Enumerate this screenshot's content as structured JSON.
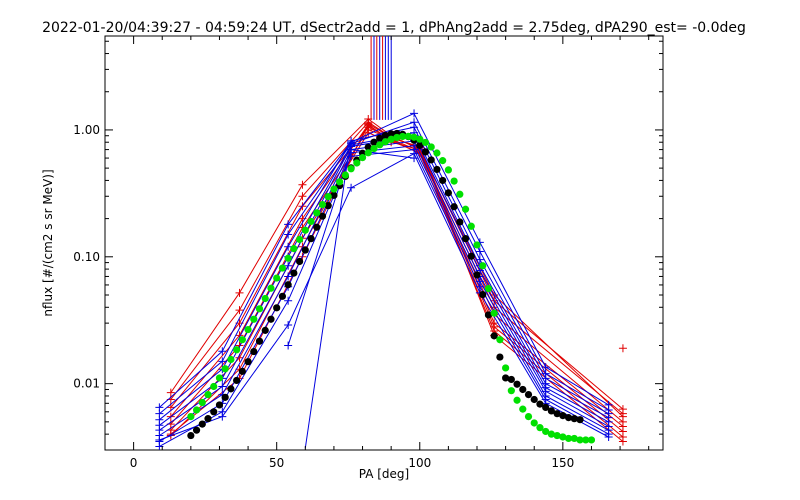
{
  "chart_data": {
    "type": "line",
    "title": "2022-01-20/04:39:27 - 04:59:24 UT, dSectr2add = 1, dPhAng2add = 2.75deg, dPA290_est=  -0.0deg",
    "xlabel": "PA [deg]",
    "ylabel": "nflux [#/(cm2 s sr MeV)]",
    "xlim": [
      -10,
      185
    ],
    "ylim": [
      0.003,
      5.5
    ],
    "yscale": "log",
    "grid": false,
    "xticks": [
      0,
      50,
      100,
      150
    ],
    "xtick_labels": [
      "0",
      "50",
      "100",
      "150"
    ],
    "yticks": [
      0.01,
      0.1,
      1.0
    ],
    "ytick_labels": [
      "0.01",
      "0.10",
      "1.00"
    ],
    "colors": {
      "red": "#e00000",
      "blue": "#0000e0",
      "green": "#00e000",
      "black": "#000000",
      "axis": "#000000"
    },
    "series": [
      {
        "color": "#e00000",
        "marker": "plus",
        "x": [
          13,
          37,
          59,
          82,
          90,
          100,
          126,
          171
        ],
        "y": [
          0.0085,
          0.052,
          0.37,
          1.22,
          0.9,
          0.7,
          0.05,
          0.0055
        ]
      },
      {
        "color": "#e00000",
        "marker": "plus",
        "x": [
          13,
          37,
          59,
          82,
          90,
          100,
          126,
          171
        ],
        "y": [
          0.0075,
          0.038,
          0.3,
          1.15,
          0.88,
          0.72,
          0.045,
          0.0063
        ]
      },
      {
        "color": "#e00000",
        "marker": "plus",
        "x": [
          13,
          37,
          59,
          82,
          90,
          100,
          126,
          171
        ],
        "y": [
          0.0065,
          0.03,
          0.25,
          1.05,
          0.85,
          0.68,
          0.04,
          0.0058
        ]
      },
      {
        "color": "#e00000",
        "marker": "plus",
        "x": [
          13,
          37,
          59,
          82,
          90,
          100,
          126,
          171
        ],
        "y": [
          0.0055,
          0.024,
          0.2,
          1.1,
          0.82,
          0.66,
          0.035,
          0.005
        ]
      },
      {
        "color": "#e00000",
        "marker": "plus",
        "x": [
          13,
          37,
          59,
          82,
          90,
          100,
          126,
          171
        ],
        "y": [
          0.0048,
          0.02,
          0.17,
          1.0,
          0.86,
          0.74,
          0.03,
          0.0046
        ]
      },
      {
        "color": "#e00000",
        "marker": "plus",
        "x": [
          13,
          37,
          59,
          82,
          90,
          100,
          126,
          171
        ],
        "y": [
          0.0043,
          0.016,
          0.14,
          0.95,
          0.8,
          0.7,
          0.028,
          0.0042
        ]
      },
      {
        "color": "#e00000",
        "marker": "plus",
        "x": [
          13,
          37,
          59,
          82,
          90,
          100,
          126,
          171
        ],
        "y": [
          0.0039,
          0.013,
          0.12,
          1.08,
          0.84,
          0.65,
          0.026,
          0.0038
        ]
      },
      {
        "color": "#e00000",
        "marker": "plus",
        "x": [
          13,
          37,
          59,
          82,
          90,
          100,
          126,
          171
        ],
        "y": [
          0.004,
          0.011,
          0.1,
          1.12,
          0.87,
          0.73,
          0.024,
          0.0035
        ]
      },
      {
        "color": "#e00000",
        "marker": "plus",
        "x": [
          171
        ],
        "y": [
          0.019
        ]
      },
      {
        "color": "#0000e0",
        "marker": "plus",
        "x": [
          9,
          31,
          54,
          76,
          98,
          121,
          144,
          166
        ],
        "y": [
          0.0065,
          0.018,
          0.18,
          0.8,
          1.35,
          0.13,
          0.0135,
          0.0068
        ]
      },
      {
        "color": "#0000e0",
        "marker": "plus",
        "x": [
          9,
          31,
          54,
          76,
          98,
          121,
          144,
          166
        ],
        "y": [
          0.0058,
          0.015,
          0.15,
          0.78,
          1.15,
          0.11,
          0.012,
          0.0062
        ]
      },
      {
        "color": "#0000e0",
        "marker": "plus",
        "x": [
          9,
          31,
          54,
          76,
          98,
          121,
          144,
          166
        ],
        "y": [
          0.0052,
          0.013,
          0.12,
          0.82,
          1.05,
          0.095,
          0.011,
          0.0058
        ]
      },
      {
        "color": "#0000e0",
        "marker": "plus",
        "x": [
          9,
          31,
          54,
          76,
          98,
          121,
          144,
          166
        ],
        "y": [
          0.0047,
          0.011,
          0.1,
          0.76,
          0.95,
          0.085,
          0.01,
          0.0054
        ]
      },
      {
        "color": "#0000e0",
        "marker": "plus",
        "x": [
          9,
          31,
          54,
          76,
          98,
          121,
          144,
          166
        ],
        "y": [
          0.0043,
          0.0095,
          0.085,
          0.74,
          0.9,
          0.078,
          0.0093,
          0.005
        ]
      },
      {
        "color": "#0000e0",
        "marker": "plus",
        "x": [
          9,
          31,
          54,
          76,
          98,
          121,
          144,
          166
        ],
        "y": [
          0.0039,
          0.0082,
          0.07,
          0.7,
          0.82,
          0.07,
          0.0087,
          0.0046
        ]
      },
      {
        "color": "#0000e0",
        "marker": "plus",
        "x": [
          9,
          31,
          54,
          76,
          98,
          121,
          144,
          166
        ],
        "y": [
          0.0035,
          0.007,
          0.058,
          0.66,
          0.75,
          0.064,
          0.008,
          0.0043
        ]
      },
      {
        "color": "#0000e0",
        "marker": "plus",
        "x": [
          9,
          31,
          54,
          76,
          98,
          121,
          144,
          166
        ],
        "y": [
          0.0032,
          0.006,
          0.045,
          0.62,
          0.7,
          0.058,
          0.0075,
          0.004
        ]
      },
      {
        "color": "#0000e0",
        "marker": "plus",
        "x": [
          9,
          31,
          54,
          76,
          98,
          121,
          144,
          166
        ],
        "y": [
          0.0036,
          0.0055,
          0.029,
          0.35,
          0.65,
          0.052,
          0.007,
          0.0038
        ]
      },
      {
        "color": "#0000e0",
        "marker": "plus",
        "x": [
          54,
          76,
          98
        ],
        "y": [
          0.02,
          0.7,
          0.6
        ]
      },
      {
        "color": "#0000e0",
        "marker": "none",
        "x": [
          60,
          75
        ],
        "y": [
          0.0031,
          0.62
        ]
      },
      {
        "color": "#000000",
        "marker": "dot",
        "x": [
          20,
          22,
          24,
          26,
          28,
          30,
          32,
          34,
          36,
          38,
          40,
          42,
          44,
          46,
          48,
          50,
          52,
          54,
          56,
          58,
          60,
          62,
          64,
          66,
          68,
          70,
          72,
          74,
          76,
          78,
          80,
          82,
          84,
          86,
          88,
          90,
          92,
          94,
          96,
          98,
          100,
          102,
          104,
          106,
          108,
          110,
          112,
          114,
          116,
          118,
          120,
          122,
          124,
          126,
          128,
          130,
          132,
          134,
          136,
          138,
          140,
          142,
          144,
          146,
          148,
          150,
          152,
          154,
          156
        ],
        "y": [
          0.0039,
          0.0043,
          0.0048,
          0.0053,
          0.006,
          0.0068,
          0.0078,
          0.0091,
          0.0106,
          0.0125,
          0.0149,
          0.0179,
          0.0216,
          0.0263,
          0.0322,
          0.0396,
          0.0488,
          0.0602,
          0.0744,
          0.0918,
          0.113,
          0.139,
          0.171,
          0.209,
          0.253,
          0.305,
          0.364,
          0.43,
          0.502,
          0.578,
          0.655,
          0.731,
          0.8,
          0.86,
          0.905,
          0.932,
          0.938,
          0.923,
          0.886,
          0.829,
          0.756,
          0.671,
          0.58,
          0.488,
          0.4,
          0.319,
          0.248,
          0.188,
          0.139,
          0.101,
          0.072,
          0.0504,
          0.0348,
          0.0238,
          0.0162,
          0.0111,
          0.0108,
          0.0099,
          0.009,
          0.0082,
          0.0075,
          0.0069,
          0.0065,
          0.0061,
          0.0058,
          0.0056,
          0.0054,
          0.0053,
          0.0052
        ]
      },
      {
        "color": "#00e000",
        "marker": "dot",
        "x": [
          20,
          22,
          24,
          26,
          28,
          30,
          32,
          34,
          36,
          38,
          40,
          42,
          44,
          46,
          48,
          50,
          52,
          54,
          56,
          58,
          60,
          62,
          64,
          66,
          68,
          70,
          72,
          74,
          76,
          78,
          80,
          82,
          84,
          86,
          88,
          90,
          92,
          94,
          96,
          98,
          100,
          102,
          104,
          106,
          108,
          110,
          112,
          114,
          116,
          118,
          120,
          122,
          124,
          126,
          128,
          130,
          132,
          134,
          136,
          138,
          140,
          142,
          144,
          146,
          148,
          150,
          152,
          154,
          156,
          158,
          160
        ],
        "y": [
          0.0055,
          0.0062,
          0.0071,
          0.0082,
          0.0095,
          0.0111,
          0.0131,
          0.0155,
          0.0185,
          0.0222,
          0.0267,
          0.0322,
          0.0389,
          0.0469,
          0.0565,
          0.068,
          0.0815,
          0.0974,
          0.116,
          0.137,
          0.162,
          0.19,
          0.222,
          0.258,
          0.298,
          0.342,
          0.39,
          0.441,
          0.494,
          0.549,
          0.605,
          0.66,
          0.713,
          0.763,
          0.807,
          0.844,
          0.872,
          0.888,
          0.89,
          0.876,
          0.845,
          0.797,
          0.734,
          0.658,
          0.573,
          0.484,
          0.395,
          0.311,
          0.237,
          0.174,
          0.124,
          0.085,
          0.0562,
          0.0359,
          0.0222,
          0.0133,
          0.0088,
          0.0074,
          0.0063,
          0.0055,
          0.0049,
          0.0045,
          0.0042,
          0.004,
          0.0039,
          0.0038,
          0.0037,
          0.0037,
          0.0036,
          0.0036,
          0.0036
        ]
      },
      {
        "color": "#e00000",
        "marker": "none",
        "x": [
          83,
          83
        ],
        "y": [
          5.5,
          1.2
        ]
      },
      {
        "color": "#e00000",
        "marker": "none",
        "x": [
          85,
          85
        ],
        "y": [
          5.5,
          1.2
        ]
      },
      {
        "color": "#e00000",
        "marker": "none",
        "x": [
          87,
          87
        ],
        "y": [
          5.5,
          1.2
        ]
      },
      {
        "color": "#0000e0",
        "marker": "none",
        "x": [
          84,
          84
        ],
        "y": [
          5.5,
          1.2
        ]
      },
      {
        "color": "#0000e0",
        "marker": "none",
        "x": [
          86,
          86
        ],
        "y": [
          5.5,
          1.2
        ]
      },
      {
        "color": "#0000e0",
        "marker": "none",
        "x": [
          88,
          88
        ],
        "y": [
          5.5,
          1.2
        ]
      },
      {
        "color": "#0000e0",
        "marker": "none",
        "x": [
          89,
          89
        ],
        "y": [
          5.5,
          1.2
        ]
      },
      {
        "color": "#0000e0",
        "marker": "none",
        "x": [
          90,
          90
        ],
        "y": [
          5.5,
          1.2
        ]
      }
    ]
  }
}
